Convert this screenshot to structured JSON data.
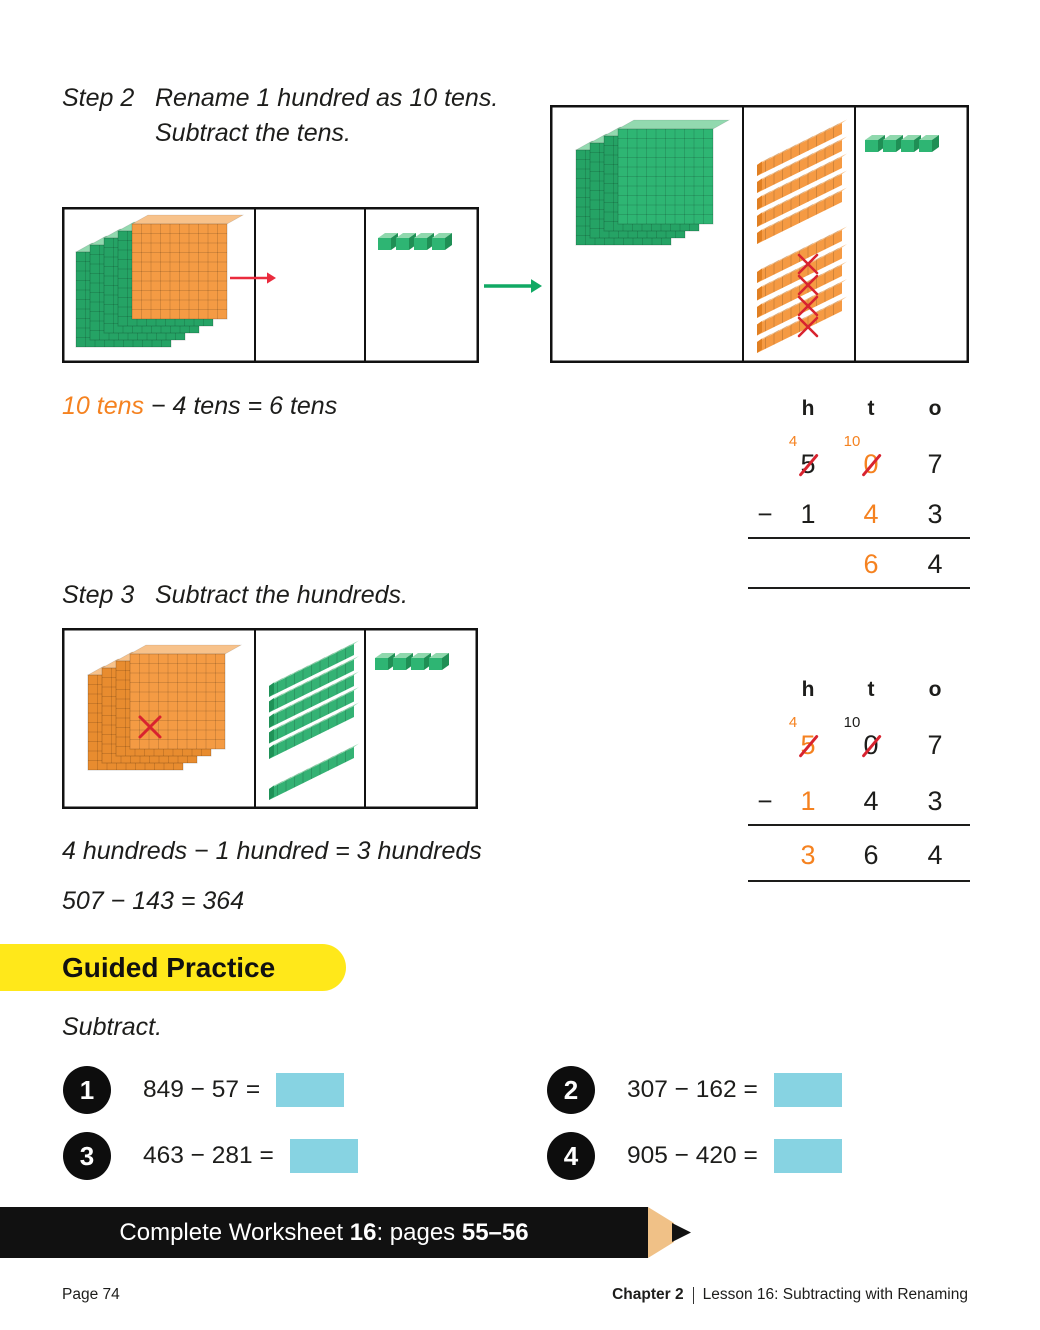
{
  "colors": {
    "accent_orange": "#f58220",
    "strike_red": "#d8232f",
    "arrow_red": "#ea2b3d",
    "arrow_green": "#10a964",
    "highlight_yellow": "#ffe81a",
    "answer_blue": "#87d3e2",
    "banner_black": "#111111",
    "pencil_tan": "#f0c187",
    "block_green": "#2eb573",
    "block_green_light": "#92d9af",
    "block_green_dark": "#1f9258",
    "block_orange": "#f49b44",
    "block_orange_light": "#f7c28b",
    "block_orange_dark": "#e07f22",
    "ink": "#1d1d1b"
  },
  "step2": {
    "label": "Step 2",
    "line1": "Rename 1 hundred as 10 tens.",
    "line2": "Subtract the tens."
  },
  "sentence_tens": {
    "highlight": "10 tens",
    "rest": " − 4 tens = 6 tens"
  },
  "step3": {
    "label": "Step 3",
    "text": "Subtract the hundreds."
  },
  "sentence_hundreds": "4 hundreds − 1 hundred = 3 hundreds",
  "sentence_equation": "507 − 143 = 364",
  "guided_practice": {
    "title": "Guided Practice",
    "instruction": "Subtract."
  },
  "problems": [
    {
      "num": "1",
      "expr": "849 − 57 ="
    },
    {
      "num": "2",
      "expr": "307 − 162 ="
    },
    {
      "num": "3",
      "expr": "463 − 281 ="
    },
    {
      "num": "4",
      "expr": "905 − 420 ="
    }
  ],
  "worksheet_banner": {
    "prefix": "Complete Worksheet ",
    "worksheet_number": "16",
    "mid": ": pages ",
    "pages": "55–56"
  },
  "footer": {
    "page": "Page 74",
    "chapter": "Chapter 2",
    "lesson": "Lesson 16: Subtracting with Renaming"
  },
  "tables": [
    {
      "headers": [
        "h",
        "t",
        "o"
      ],
      "carries": [
        {
          "text": "4",
          "color": "orange"
        },
        {
          "text": "10",
          "color": "orange"
        }
      ],
      "minuend": [
        {
          "d": "5",
          "color": "ink",
          "slash": true
        },
        {
          "d": "0",
          "color": "orange",
          "slash": true
        },
        {
          "d": "7",
          "color": "ink"
        }
      ],
      "minus": "−",
      "subtrahend": [
        {
          "d": "1",
          "color": "ink"
        },
        {
          "d": "4",
          "color": "orange"
        },
        {
          "d": "3",
          "color": "ink"
        }
      ],
      "result": [
        {
          "d": ""
        },
        {
          "d": "6",
          "color": "orange"
        },
        {
          "d": "4",
          "color": "ink"
        }
      ]
    },
    {
      "headers": [
        "h",
        "t",
        "o"
      ],
      "carries": [
        {
          "text": "4",
          "color": "orange"
        },
        {
          "text": "10",
          "color": "ink"
        }
      ],
      "minuend": [
        {
          "d": "5",
          "color": "orange",
          "slash": true
        },
        {
          "d": "0",
          "color": "ink",
          "slash": true
        },
        {
          "d": "7",
          "color": "ink"
        }
      ],
      "minus": "−",
      "subtrahend": [
        {
          "d": "1",
          "color": "orange"
        },
        {
          "d": "4",
          "color": "ink"
        },
        {
          "d": "3",
          "color": "ink"
        }
      ],
      "result": [
        {
          "d": "3",
          "color": "orange"
        },
        {
          "d": "6",
          "color": "ink"
        },
        {
          "d": "4",
          "color": "ink"
        }
      ]
    }
  ],
  "diagrams": {
    "before": {
      "hundreds": {
        "colors": [
          "green",
          "green",
          "green",
          "green",
          "orange"
        ]
      },
      "tens": {
        "count": 0
      },
      "ones": {
        "count": 4
      },
      "red_arrow": true
    },
    "after": {
      "hundreds": {
        "colors": [
          "green",
          "green",
          "green",
          "green"
        ]
      },
      "tens": {
        "count": 10,
        "color": "orange",
        "crossed": 4
      },
      "ones": {
        "count": 4
      }
    },
    "step3": {
      "hundreds": {
        "colors": [
          "orange",
          "orange",
          "orange",
          "orange"
        ],
        "crossed": 1
      },
      "tens": {
        "count": 6,
        "color": "green"
      },
      "ones": {
        "count": 4
      }
    }
  }
}
